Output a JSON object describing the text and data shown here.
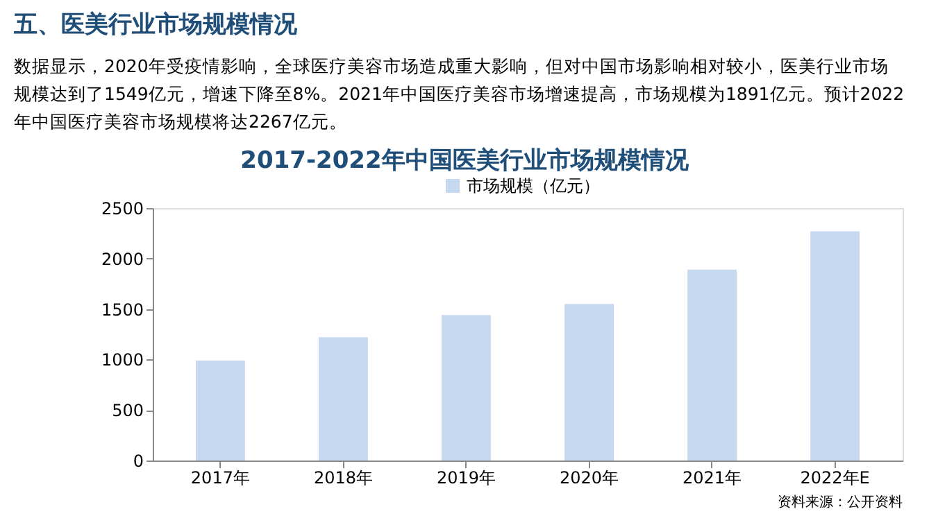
{
  "chart_data": {
    "type": "bar",
    "title": "2017-2022年中国医美行业市场规模情况",
    "annotations": [
      "五、医美行业市场规模情况",
      "数据显示，2020年受疫情影响，全球医疗美容市场造成重大影响，但对中国市场影响相对较小，医美行业市场规模达到了1549亿元，增速下降至8%。2021年中国医疗美容市场增速提高，市场规模为1891亿元。预计2022年中国医疗美容市场规模将达2267亿元。",
      "资料来源：公开资料"
    ],
    "categories": [
      "2017年",
      "2018年",
      "2019年",
      "2020年",
      "2021年",
      "2022年E"
    ],
    "series": [
      {
        "name": "市场规模（亿元）",
        "color": "#c6d9f1",
        "values": [
          990,
          1220,
          1440,
          1550,
          1890,
          2270
        ]
      }
    ],
    "ylim": [
      0,
      2500
    ],
    "yticks": [
      0,
      500,
      1000,
      1500,
      2000,
      2500
    ],
    "grid": false,
    "legend": "top"
  }
}
